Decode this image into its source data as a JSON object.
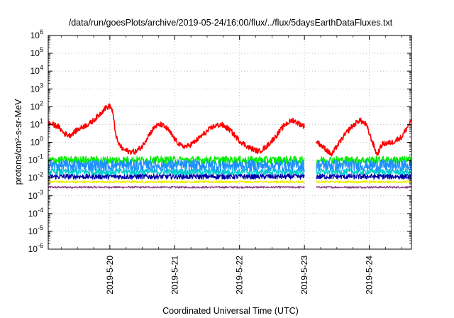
{
  "chart_data": {
    "type": "line",
    "title": "/data/run/goesPlots/archive/2019-05-24/16:00/flux/../flux/5daysEarthDataFluxes.txt",
    "xlabel": "Coordinated Universal Time (UTC)",
    "ylabel": "protons/cm²-s-sr-MeV",
    "y_scale": "log",
    "ylim": [
      1e-06,
      1000000.0
    ],
    "xlim_days": [
      -0.95,
      4.65
    ],
    "x_ticks": [
      {
        "label": "2019-5-20",
        "day": 0
      },
      {
        "label": "2019-5-21",
        "day": 1
      },
      {
        "label": "2019-5-22",
        "day": 2
      },
      {
        "label": "2019-5-23",
        "day": 3
      },
      {
        "label": "2019-5-24",
        "day": 4
      }
    ],
    "y_ticks": [
      {
        "base": "10",
        "exp": "6",
        "value": 6
      },
      {
        "base": "10",
        "exp": "5",
        "value": 5
      },
      {
        "base": "10",
        "exp": "4",
        "value": 4
      },
      {
        "base": "10",
        "exp": "3",
        "value": 3
      },
      {
        "base": "10",
        "exp": "2",
        "value": 2
      },
      {
        "base": "10",
        "exp": "1",
        "value": 1
      },
      {
        "base": "10",
        "exp": "0",
        "value": 0
      },
      {
        "base": "10",
        "exp": "-1",
        "value": -1
      },
      {
        "base": "10",
        "exp": "-2",
        "value": -2
      },
      {
        "base": "10",
        "exp": "-3",
        "value": -3
      },
      {
        "base": "10",
        "exp": "-4",
        "value": -4
      },
      {
        "base": "10",
        "exp": "-5",
        "value": -5
      },
      {
        "base": "10",
        "exp": "-6",
        "value": -6
      }
    ],
    "grid": true,
    "data_gap_days": [
      3.0,
      3.18
    ],
    "series": [
      {
        "color": "#ff0000",
        "noise": 0.15,
        "points": [
          [
            -0.95,
            12
          ],
          [
            -0.8,
            8
          ],
          [
            -0.7,
            3
          ],
          [
            -0.62,
            2.5
          ],
          [
            -0.5,
            5
          ],
          [
            -0.4,
            8
          ],
          [
            -0.3,
            12
          ],
          [
            -0.18,
            30
          ],
          [
            -0.08,
            80
          ],
          [
            0.0,
            110
          ],
          [
            0.04,
            60
          ],
          [
            0.08,
            5
          ],
          [
            0.12,
            1.0
          ],
          [
            0.2,
            0.4
          ],
          [
            0.3,
            0.3
          ],
          [
            0.4,
            0.3
          ],
          [
            0.5,
            0.6
          ],
          [
            0.58,
            2
          ],
          [
            0.7,
            8
          ],
          [
            0.8,
            10
          ],
          [
            0.9,
            5
          ],
          [
            1.0,
            1.5
          ],
          [
            1.1,
            0.6
          ],
          [
            1.2,
            0.6
          ],
          [
            1.3,
            1.0
          ],
          [
            1.45,
            3
          ],
          [
            1.6,
            8
          ],
          [
            1.72,
            10
          ],
          [
            1.85,
            5
          ],
          [
            2.0,
            1.2
          ],
          [
            2.15,
            0.5
          ],
          [
            2.3,
            0.3
          ],
          [
            2.42,
            0.6
          ],
          [
            2.55,
            2
          ],
          [
            2.7,
            10
          ],
          [
            2.82,
            18
          ],
          [
            2.9,
            12
          ],
          [
            3.0,
            8
          ],
          [
            3.18,
            1.2
          ],
          [
            3.3,
            0.5
          ],
          [
            3.42,
            0.2
          ],
          [
            3.5,
            0.6
          ],
          [
            3.6,
            2
          ],
          [
            3.7,
            6
          ],
          [
            3.85,
            18
          ],
          [
            3.95,
            10
          ],
          [
            4.05,
            1
          ],
          [
            4.12,
            0.2
          ],
          [
            4.2,
            0.8
          ],
          [
            4.35,
            1
          ],
          [
            4.5,
            2
          ],
          [
            4.65,
            18
          ]
        ]
      },
      {
        "color": "#00ee00",
        "noise": 0.22,
        "points": [
          [
            -0.95,
            0.1
          ],
          [
            0,
            0.1
          ],
          [
            1,
            0.1
          ],
          [
            2,
            0.1
          ],
          [
            3,
            0.1
          ],
          [
            4,
            0.1
          ],
          [
            4.65,
            0.1
          ]
        ]
      },
      {
        "color": "#1e90ff",
        "noise": 0.32,
        "points": [
          [
            -0.95,
            0.05
          ],
          [
            0,
            0.05
          ],
          [
            1,
            0.05
          ],
          [
            2,
            0.05
          ],
          [
            3,
            0.05
          ],
          [
            4,
            0.05
          ],
          [
            4.65,
            0.05
          ]
        ]
      },
      {
        "color": "#00ced1",
        "noise": 0.18,
        "points": [
          [
            -0.95,
            0.022
          ],
          [
            0,
            0.022
          ],
          [
            1,
            0.022
          ],
          [
            2,
            0.022
          ],
          [
            3,
            0.022
          ],
          [
            4,
            0.022
          ],
          [
            4.65,
            0.022
          ]
        ]
      },
      {
        "color": "#0000aa",
        "noise": 0.15,
        "points": [
          [
            -0.95,
            0.012
          ],
          [
            0,
            0.012
          ],
          [
            1,
            0.012
          ],
          [
            2,
            0.012
          ],
          [
            3,
            0.012
          ],
          [
            4,
            0.012
          ],
          [
            4.65,
            0.012
          ]
        ]
      },
      {
        "color": "#eeee00",
        "noise": 0.06,
        "points": [
          [
            -0.95,
            0.006
          ],
          [
            0,
            0.006
          ],
          [
            1,
            0.006
          ],
          [
            2,
            0.006
          ],
          [
            3,
            0.006
          ],
          [
            4,
            0.006
          ],
          [
            4.65,
            0.006
          ]
        ]
      },
      {
        "color": "#8b3a8b",
        "noise": 0.05,
        "points": [
          [
            -0.95,
            0.003
          ],
          [
            0,
            0.003
          ],
          [
            1,
            0.003
          ],
          [
            2,
            0.003
          ],
          [
            3,
            0.003
          ],
          [
            4,
            0.003
          ],
          [
            4.65,
            0.003
          ]
        ]
      }
    ]
  }
}
